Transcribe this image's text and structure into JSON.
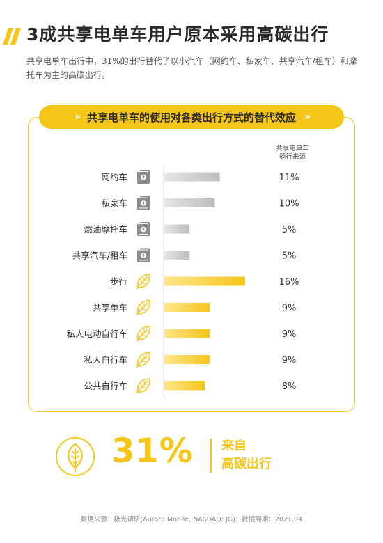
{
  "title": "3成共享电单车用户原本采用高碳出行",
  "description": "共享电单车出行中，31%的出行替代了以小汽车（网约车、私家车、共享汽车/租车）和摩托车为主的高碳出行。",
  "banner": {
    "text": "共享电单车的使用对各类出行方式的替代效应",
    "chevrons": "»"
  },
  "column_header": {
    "line1": "共享电单车",
    "line2": "骑行来源"
  },
  "summary": {
    "value": "31%",
    "label_line1": "来自",
    "label_line2": "高碳出行"
  },
  "footer": "数据来源：极光调研(Aurora Mobile, NASDAQ: JG)；数据周期：2021.04",
  "colors": {
    "accent": "#f5c518",
    "gray": "#c7c7c7"
  },
  "chart_data": {
    "type": "bar",
    "orientation": "horizontal",
    "categories": [
      "网约车",
      "私家车",
      "燃油摩托车",
      "共享汽车/租车",
      "步行",
      "共享单车",
      "私人电动自行车",
      "私人自行车",
      "公共自行车"
    ],
    "values": [
      11,
      10,
      5,
      5,
      16,
      9,
      9,
      9,
      8
    ],
    "labels": [
      "11%",
      "10%",
      "5%",
      "5%",
      "16%",
      "9%",
      "9%",
      "9%",
      "8%"
    ],
    "icons": [
      "fuel-icon",
      "fuel-icon",
      "fuel-icon",
      "fuel-icon",
      "leaf-icon",
      "leaf-icon",
      "leaf-icon",
      "leaf-icon",
      "leaf-icon"
    ],
    "groups": [
      "high-carbon",
      "high-carbon",
      "high-carbon",
      "high-carbon",
      "low-carbon",
      "low-carbon",
      "low-carbon",
      "low-carbon",
      "low-carbon"
    ],
    "xlim": [
      0,
      16
    ],
    "grid": false
  }
}
